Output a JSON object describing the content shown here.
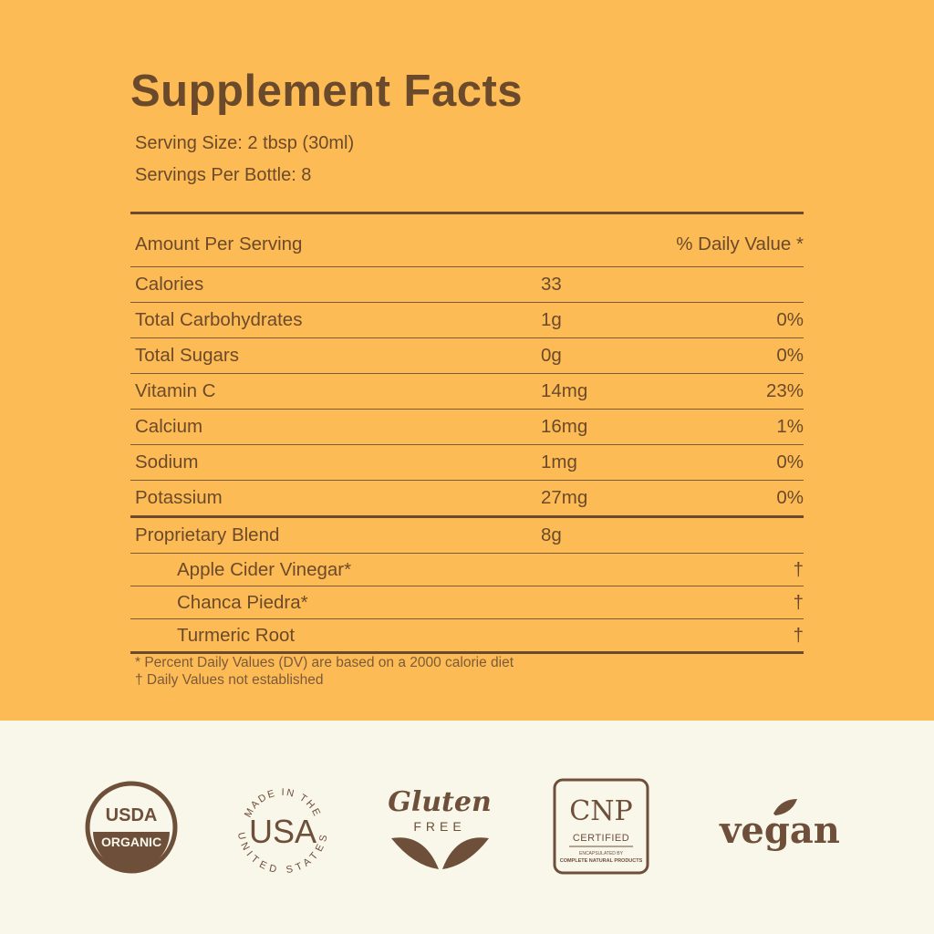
{
  "title": "Supplement Facts",
  "serving_size": "Serving Size: 2 tbsp (30ml)",
  "servings_per": "Servings Per Bottle: 8",
  "header": {
    "amount": "Amount Per Serving",
    "dv": "% Daily Value *"
  },
  "rows": [
    {
      "name": "Calories",
      "amount": "33",
      "dv": ""
    },
    {
      "name": "Total Carbohydrates",
      "amount": "1g",
      "dv": "0%"
    },
    {
      "name": "Total Sugars",
      "amount": "0g",
      "dv": "0%"
    },
    {
      "name": "Vitamin C",
      "amount": "14mg",
      "dv": "23%"
    },
    {
      "name": "Calcium",
      "amount": "16mg",
      "dv": "1%"
    },
    {
      "name": "Sodium",
      "amount": "1mg",
      "dv": "0%"
    },
    {
      "name": "Potassium",
      "amount": "27mg",
      "dv": "0%"
    }
  ],
  "blend": {
    "name": "Proprietary Blend",
    "amount": "8g",
    "items": [
      {
        "name": "Apple Cider Vinegar*",
        "dv": "†"
      },
      {
        "name": "Chanca Piedra*",
        "dv": "†"
      },
      {
        "name": "Turmeric Root",
        "dv": "†"
      }
    ]
  },
  "footnotes": [
    "* Percent Daily Values (DV) are based on a 2000 calorie diet",
    "† Daily Values not established"
  ],
  "badges": {
    "usda": {
      "top": "USDA",
      "bottom": "ORGANIC"
    },
    "usa": {
      "arc_top": "MADE IN THE",
      "center": "USA",
      "arc_bottom": "UNITED STATES"
    },
    "gluten": {
      "script": "Gluten",
      "free": "FREE"
    },
    "cnp": {
      "logo": "CNP",
      "certified": "CERTIFIED",
      "line1": "ENCAPSULATED BY",
      "line2": "COMPLETE NATURAL PRODUCTS"
    },
    "vegan": "vegan"
  },
  "colors": {
    "panel_bg": "#fdbb55",
    "text": "#6b4a2b",
    "footer_bg": "#f9f6ea",
    "badge": "#6e4f3a"
  }
}
